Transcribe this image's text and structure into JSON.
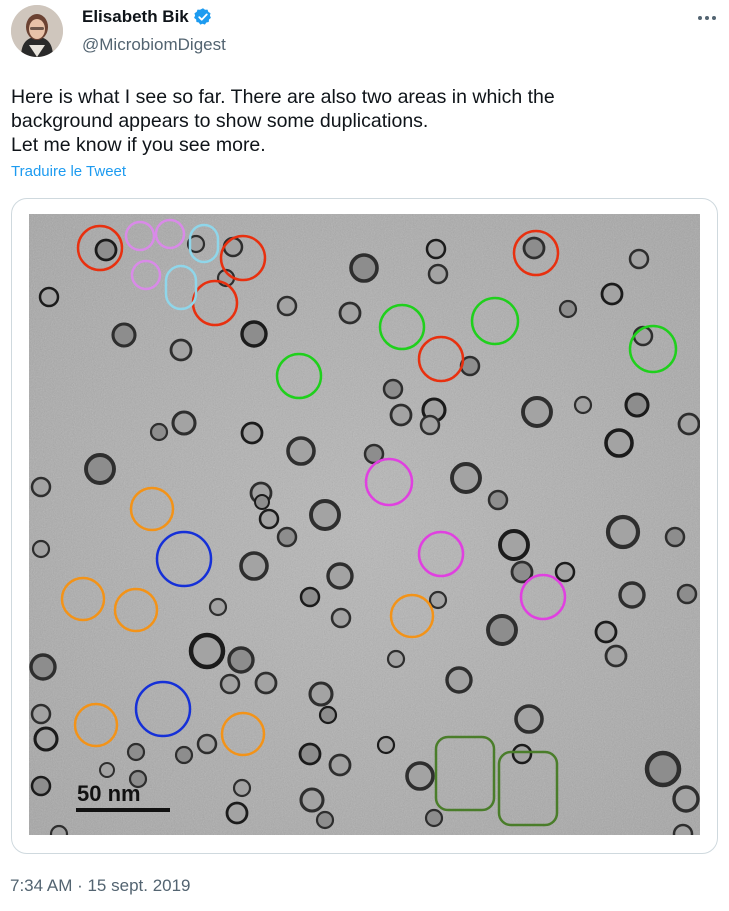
{
  "author": {
    "display_name": "Elisabeth Bik",
    "handle": "@MicrobiomDigest",
    "verified": true,
    "avatar_icon": "profile-photo"
  },
  "tweet": {
    "lines": [
      "Here is what I see so far. There are also two areas in which the",
      "background appears to show some duplications.",
      "Let me know if you see more."
    ],
    "translate_link": "Traduire le Tweet",
    "timestamp": "7:34 AM · 15 sept. 2019"
  },
  "media": {
    "scale_bar_label": "50 nm",
    "annotation_colors": {
      "red": "#e8300f",
      "violet": "#d98ae8",
      "lightblue": "#8fd6ea",
      "green": "#1fd01c",
      "magenta": "#e040e0",
      "orange": "#f39318",
      "blue": "#1530d8",
      "darkgreen": "#4a7d2a"
    }
  },
  "colors": {
    "accent": "#1d9bf0",
    "text_secondary": "#536471"
  }
}
